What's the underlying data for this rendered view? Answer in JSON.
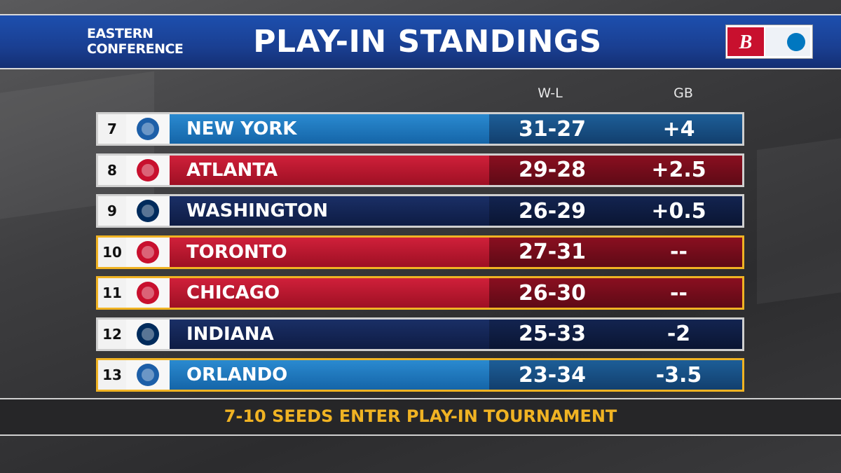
{
  "header": {
    "conference": [
      "EASTERN",
      "CONFERENCE"
    ],
    "title": "PLAY-IN STANDINGS"
  },
  "table": {
    "columns": [
      "W-L",
      "GB"
    ],
    "rows": [
      {
        "seed": 7,
        "team": "NEW YORK",
        "wl": "31-27",
        "gb": "+4",
        "color": "blue",
        "highlighted": false
      },
      {
        "seed": 8,
        "team": "ATLANTA",
        "wl": "29-28",
        "gb": "+2.5",
        "color": "red",
        "highlighted": false
      },
      {
        "seed": 9,
        "team": "WASHINGTON",
        "wl": "26-29",
        "gb": "+0.5",
        "color": "navy",
        "highlighted": false
      },
      {
        "seed": 10,
        "team": "TORONTO",
        "wl": "27-31",
        "gb": "--",
        "color": "red",
        "highlighted": true
      },
      {
        "seed": 11,
        "team": "CHICAGO",
        "wl": "26-30",
        "gb": "--",
        "color": "red",
        "highlighted": true
      },
      {
        "seed": 12,
        "team": "INDIANA",
        "wl": "25-33",
        "gb": "-2",
        "color": "navy",
        "highlighted": false
      },
      {
        "seed": 13,
        "team": "ORLANDO",
        "wl": "23-34",
        "gb": "-3.5",
        "color": "blue",
        "highlighted": true
      }
    ]
  },
  "footer": {
    "note": "7-10 SEEDS ENTER PLAY-IN TOURNAMENT"
  }
}
